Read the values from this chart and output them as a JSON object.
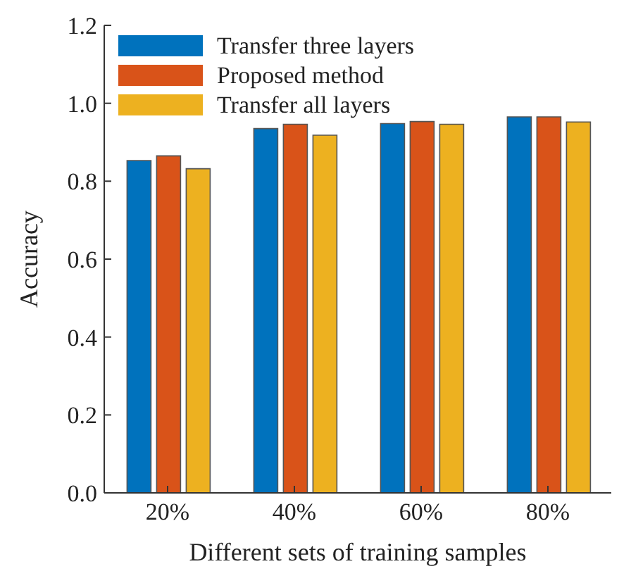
{
  "chart_data": {
    "type": "bar",
    "xlabel": "Different sets of training samples",
    "ylabel": "Accuracy",
    "categories": [
      "20%",
      "40%",
      "60%",
      "80%"
    ],
    "series": [
      {
        "name": "Transfer three layers",
        "color": "#0072bd",
        "values": [
          0.853,
          0.935,
          0.948,
          0.965
        ]
      },
      {
        "name": "Proposed method",
        "color": "#d95319",
        "values": [
          0.865,
          0.946,
          0.953,
          0.965
        ]
      },
      {
        "name": "Transfer all layers",
        "color": "#edb120",
        "values": [
          0.832,
          0.918,
          0.946,
          0.952
        ]
      }
    ],
    "ylim": [
      0,
      1.2
    ],
    "yticks": [
      {
        "value": 0,
        "label": "0.0"
      },
      0.2,
      0.4,
      0.6,
      0.8,
      {
        "value": 1,
        "label": "1.0"
      },
      1.2
    ],
    "grid": false,
    "legend": "top left"
  }
}
